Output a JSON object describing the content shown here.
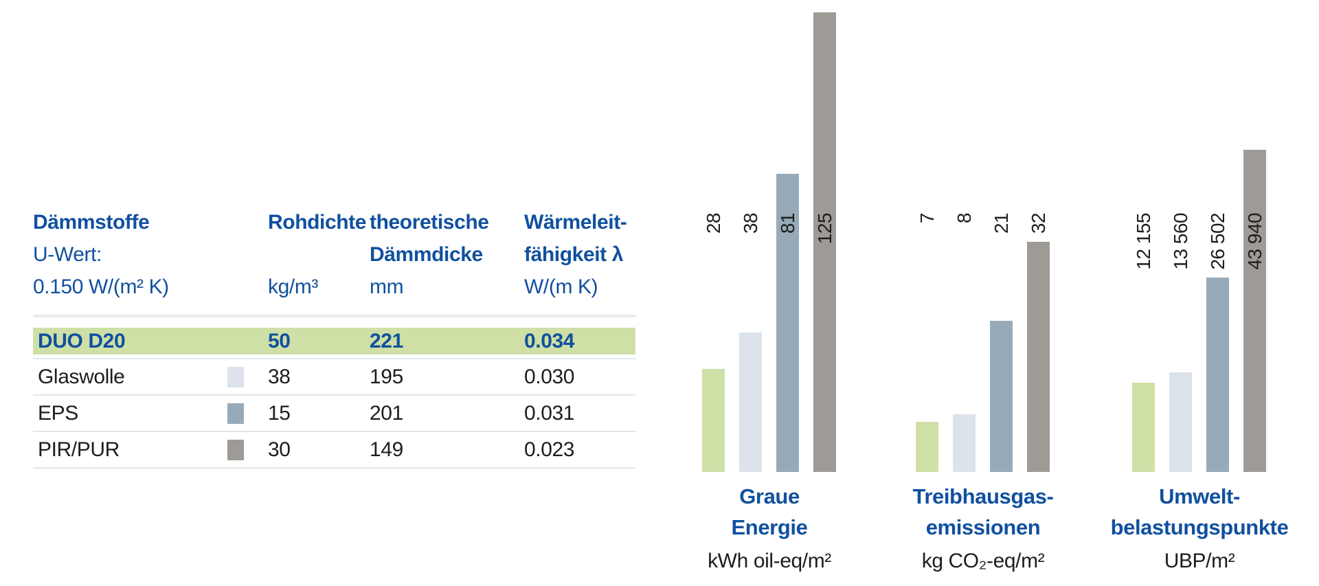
{
  "colors": {
    "accent_blue": "#10509f",
    "highlight": "#cfe0a6",
    "rule": "#e9ecef",
    "separator": "#dfe6ec",
    "text": "#1d1d1b"
  },
  "series": [
    {
      "name": "DUO D20",
      "color": "#cfe0a6"
    },
    {
      "name": "Glaswolle",
      "color": "#dce3ea"
    },
    {
      "name": "EPS",
      "color": "#97aab9"
    },
    {
      "name": "PIR/PUR",
      "color": "#9e9b96"
    }
  ],
  "table": {
    "header": {
      "col1": [
        "Dämmstoffe",
        "U-Wert:",
        "0.150 W/(m² K)"
      ],
      "col2": [
        "Rohdichte",
        "",
        "kg/m³"
      ],
      "col3": [
        "theoretische",
        "Dämmdicke",
        "mm"
      ],
      "col4": [
        "Wärmeleit-",
        "fähigkeit λ",
        "W/(m K)"
      ]
    },
    "rows": [
      {
        "label": "DUO D20",
        "rohdichte": "50",
        "daemmdicke": "221",
        "lambda": "0.034",
        "highlight": true
      },
      {
        "label": "Glaswolle",
        "rohdichte": "38",
        "daemmdicke": "195",
        "lambda": "0.030",
        "highlight": false
      },
      {
        "label": "EPS",
        "rohdichte": "15",
        "daemmdicke": "201",
        "lambda": "0.031",
        "highlight": false
      },
      {
        "label": "PIR/PUR",
        "rohdichte": "30",
        "daemmdicke": "149",
        "lambda": "0.023",
        "highlight": false
      }
    ]
  },
  "chart_data": [
    {
      "type": "bar",
      "title": "Graue Energie",
      "title_lines": [
        "Graue",
        "Energie"
      ],
      "unit": "kWh oil-eq/m²",
      "categories": [
        "DUO D20",
        "Glaswolle",
        "EPS",
        "PIR/PUR"
      ],
      "values": [
        28,
        38,
        81,
        125
      ],
      "labels": [
        "28",
        "38",
        "81",
        "125"
      ],
      "ylim": [
        0,
        125
      ],
      "grid": false,
      "value_labels": "rotated-90-above-bars"
    },
    {
      "type": "bar",
      "title": "Treibhausgas-emissionen",
      "title_lines": [
        "Treibhausgas-",
        "emissionen"
      ],
      "unit": "kg CO₂-eq/m²",
      "categories": [
        "DUO D20",
        "Glaswolle",
        "EPS",
        "PIR/PUR"
      ],
      "values": [
        7,
        8,
        21,
        32
      ],
      "labels": [
        "7",
        "8",
        "21",
        "32"
      ],
      "ylim": [
        0,
        32
      ],
      "grid": false,
      "value_labels": "rotated-90-above-bars"
    },
    {
      "type": "bar",
      "title": "Umwelt-belastungspunkte",
      "title_lines": [
        "Umwelt-",
        "belastungspunkte"
      ],
      "unit": "UBP/m²",
      "categories": [
        "DUO D20",
        "Glaswolle",
        "EPS",
        "PIR/PUR"
      ],
      "values": [
        12155,
        13560,
        26502,
        43940
      ],
      "labels": [
        "12 155",
        "13 560",
        "26 502",
        "43 940"
      ],
      "ylim": [
        0,
        43940
      ],
      "grid": false,
      "value_labels": "rotated-90-above-bars"
    }
  ]
}
